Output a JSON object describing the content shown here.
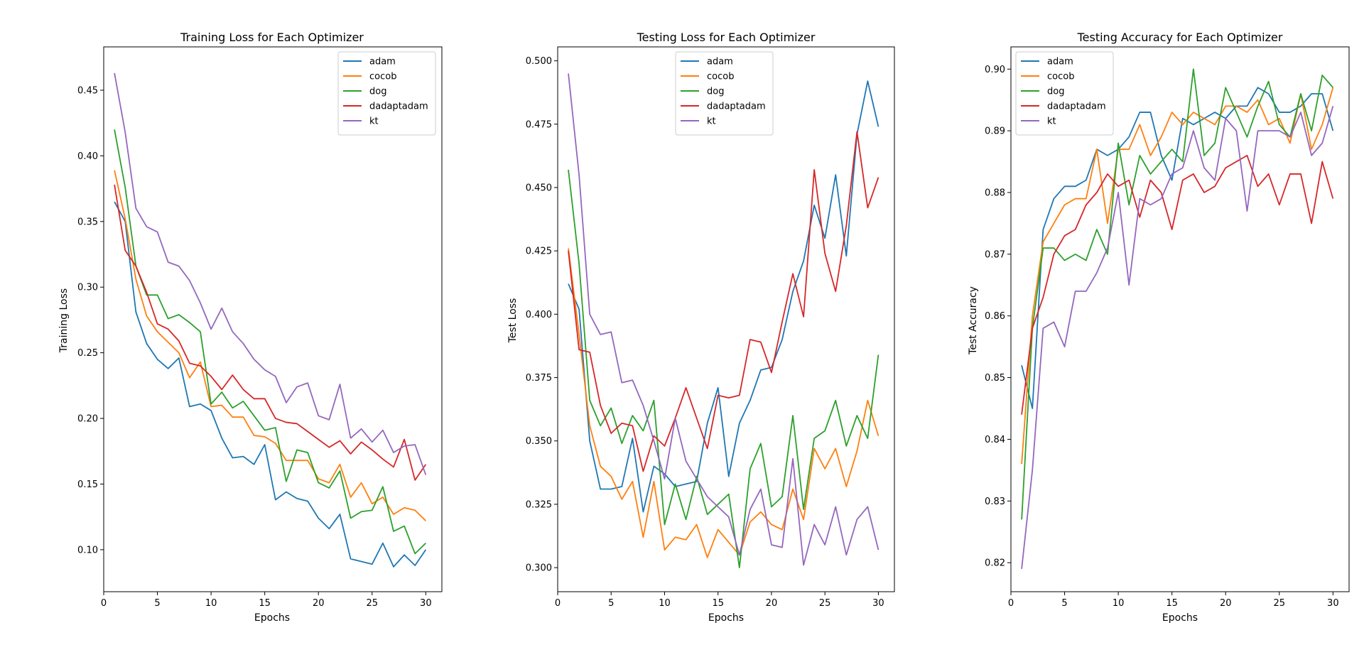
{
  "colors": {
    "adam": "#1f77b4",
    "cocob": "#ff7f0e",
    "dog": "#2ca02c",
    "dadaptadam": "#d62728",
    "kt": "#9467bd"
  },
  "chart_data": [
    {
      "type": "line",
      "title": "Training Loss for Each Optimizer",
      "xlabel": "Epochs",
      "ylabel": "Training Loss",
      "xlim": [
        0,
        31.5
      ],
      "ylim": [
        0.068,
        0.483
      ],
      "xticks": [
        0,
        5,
        10,
        15,
        20,
        25,
        30
      ],
      "yticks": [
        0.1,
        0.15,
        0.2,
        0.25,
        0.3,
        0.35,
        0.4,
        0.45
      ],
      "ytick_labels": [
        "0.10",
        "0.15",
        "0.20",
        "0.25",
        "0.30",
        "0.35",
        "0.40",
        "0.45"
      ],
      "legend_placement": "upper right",
      "grid": false,
      "x": [
        1,
        2,
        3,
        4,
        5,
        6,
        7,
        8,
        9,
        10,
        11,
        12,
        13,
        14,
        15,
        16,
        17,
        18,
        19,
        20,
        21,
        22,
        23,
        24,
        25,
        26,
        27,
        28,
        29,
        30
      ],
      "series": [
        {
          "name": "adam",
          "values": [
            0.365,
            0.35,
            0.281,
            0.257,
            0.245,
            0.238,
            0.246,
            0.209,
            0.211,
            0.206,
            0.185,
            0.17,
            0.171,
            0.165,
            0.18,
            0.138,
            0.144,
            0.139,
            0.137,
            0.124,
            0.116,
            0.127,
            0.093,
            0.091,
            0.089,
            0.105,
            0.087,
            0.096,
            0.088,
            0.1
          ]
        },
        {
          "name": "cocob",
          "values": [
            0.389,
            0.352,
            0.306,
            0.278,
            0.266,
            0.258,
            0.25,
            0.231,
            0.243,
            0.209,
            0.21,
            0.201,
            0.201,
            0.187,
            0.186,
            0.181,
            0.168,
            0.168,
            0.168,
            0.154,
            0.151,
            0.165,
            0.14,
            0.151,
            0.135,
            0.14,
            0.127,
            0.132,
            0.13,
            0.122
          ]
        },
        {
          "name": "dog",
          "values": [
            0.42,
            0.376,
            0.316,
            0.294,
            0.294,
            0.276,
            0.279,
            0.273,
            0.266,
            0.211,
            0.22,
            0.208,
            0.213,
            0.202,
            0.191,
            0.193,
            0.152,
            0.176,
            0.174,
            0.151,
            0.147,
            0.16,
            0.124,
            0.129,
            0.13,
            0.148,
            0.114,
            0.118,
            0.097,
            0.105
          ]
        },
        {
          "name": "dadaptadam",
          "values": [
            0.378,
            0.328,
            0.316,
            0.296,
            0.272,
            0.268,
            0.259,
            0.242,
            0.24,
            0.232,
            0.222,
            0.233,
            0.222,
            0.215,
            0.215,
            0.2,
            0.197,
            0.196,
            0.19,
            0.184,
            0.178,
            0.183,
            0.173,
            0.182,
            0.176,
            0.169,
            0.163,
            0.184,
            0.153,
            0.165
          ]
        },
        {
          "name": "kt",
          "values": [
            0.463,
            0.418,
            0.36,
            0.346,
            0.342,
            0.319,
            0.316,
            0.305,
            0.288,
            0.268,
            0.284,
            0.266,
            0.257,
            0.245,
            0.237,
            0.232,
            0.212,
            0.224,
            0.227,
            0.202,
            0.199,
            0.226,
            0.185,
            0.192,
            0.182,
            0.191,
            0.174,
            0.179,
            0.18,
            0.157
          ]
        }
      ]
    },
    {
      "type": "line",
      "title": "Testing Loss for Each Optimizer",
      "xlabel": "Epochs",
      "ylabel": "Test Loss",
      "xlim": [
        0,
        31.5
      ],
      "ylim": [
        0.2905,
        0.5055
      ],
      "xticks": [
        0,
        5,
        10,
        15,
        20,
        25,
        30
      ],
      "yticks": [
        0.3,
        0.325,
        0.35,
        0.375,
        0.4,
        0.425,
        0.45,
        0.475,
        0.5
      ],
      "ytick_labels": [
        "0.300",
        "0.325",
        "0.350",
        "0.375",
        "0.400",
        "0.425",
        "0.450",
        "0.475",
        "0.500"
      ],
      "legend_placement": "upper center",
      "grid": false,
      "x": [
        1,
        2,
        3,
        4,
        5,
        6,
        7,
        8,
        9,
        10,
        11,
        12,
        13,
        14,
        15,
        16,
        17,
        18,
        19,
        20,
        21,
        22,
        23,
        24,
        25,
        26,
        27,
        28,
        29,
        30
      ],
      "series": [
        {
          "name": "adam",
          "values": [
            0.412,
            0.402,
            0.35,
            0.331,
            0.331,
            0.332,
            0.351,
            0.322,
            0.34,
            0.337,
            0.332,
            0.333,
            0.334,
            0.357,
            0.371,
            0.336,
            0.357,
            0.366,
            0.378,
            0.379,
            0.39,
            0.409,
            0.421,
            0.443,
            0.43,
            0.455,
            0.423,
            0.471,
            0.492,
            0.474
          ]
        },
        {
          "name": "cocob",
          "values": [
            0.426,
            0.392,
            0.356,
            0.34,
            0.336,
            0.327,
            0.334,
            0.312,
            0.334,
            0.307,
            0.312,
            0.311,
            0.317,
            0.304,
            0.315,
            0.31,
            0.305,
            0.318,
            0.322,
            0.317,
            0.315,
            0.331,
            0.319,
            0.347,
            0.339,
            0.347,
            0.332,
            0.346,
            0.366,
            0.352
          ]
        },
        {
          "name": "dog",
          "values": [
            0.457,
            0.42,
            0.366,
            0.356,
            0.363,
            0.349,
            0.36,
            0.354,
            0.366,
            0.317,
            0.333,
            0.319,
            0.336,
            0.321,
            0.325,
            0.329,
            0.3,
            0.339,
            0.349,
            0.324,
            0.328,
            0.36,
            0.323,
            0.351,
            0.354,
            0.366,
            0.348,
            0.36,
            0.351,
            0.384
          ]
        },
        {
          "name": "dadaptadam",
          "values": [
            0.425,
            0.386,
            0.385,
            0.364,
            0.353,
            0.357,
            0.356,
            0.338,
            0.352,
            0.348,
            0.359,
            0.371,
            0.359,
            0.347,
            0.368,
            0.367,
            0.368,
            0.39,
            0.389,
            0.377,
            0.397,
            0.416,
            0.399,
            0.457,
            0.424,
            0.409,
            0.435,
            0.472,
            0.442,
            0.454
          ]
        },
        {
          "name": "kt",
          "values": [
            0.495,
            0.455,
            0.4,
            0.392,
            0.393,
            0.373,
            0.374,
            0.364,
            0.35,
            0.335,
            0.359,
            0.342,
            0.335,
            0.328,
            0.324,
            0.32,
            0.305,
            0.323,
            0.331,
            0.309,
            0.308,
            0.343,
            0.301,
            0.317,
            0.309,
            0.324,
            0.305,
            0.319,
            0.324,
            0.307
          ]
        }
      ]
    },
    {
      "type": "line",
      "title": "Testing Accuracy for Each Optimizer",
      "xlabel": "Epochs",
      "ylabel": "Test Accuracy",
      "xlim": [
        0,
        31.5
      ],
      "ylim": [
        0.8153,
        0.9036
      ],
      "xticks": [
        0,
        5,
        10,
        15,
        20,
        25,
        30
      ],
      "yticks": [
        0.82,
        0.83,
        0.84,
        0.85,
        0.86,
        0.87,
        0.88,
        0.89,
        0.9
      ],
      "ytick_labels": [
        "0.82",
        "0.83",
        "0.84",
        "0.85",
        "0.86",
        "0.87",
        "0.88",
        "0.89",
        "0.90"
      ],
      "legend_placement": "upper left",
      "grid": false,
      "x": [
        1,
        2,
        3,
        4,
        5,
        6,
        7,
        8,
        9,
        10,
        11,
        12,
        13,
        14,
        15,
        16,
        17,
        18,
        19,
        20,
        21,
        22,
        23,
        24,
        25,
        26,
        27,
        28,
        29,
        30
      ],
      "series": [
        {
          "name": "adam",
          "values": [
            0.852,
            0.845,
            0.874,
            0.879,
            0.881,
            0.881,
            0.882,
            0.887,
            0.886,
            0.887,
            0.889,
            0.893,
            0.893,
            0.886,
            0.882,
            0.892,
            0.891,
            0.892,
            0.893,
            0.892,
            0.894,
            0.894,
            0.897,
            0.896,
            0.893,
            0.893,
            0.894,
            0.896,
            0.896,
            0.89
          ]
        },
        {
          "name": "cocob",
          "values": [
            0.836,
            0.86,
            0.872,
            0.875,
            0.878,
            0.879,
            0.879,
            0.887,
            0.875,
            0.887,
            0.887,
            0.891,
            0.886,
            0.889,
            0.893,
            0.891,
            0.893,
            0.892,
            0.891,
            0.894,
            0.894,
            0.893,
            0.895,
            0.891,
            0.892,
            0.888,
            0.896,
            0.887,
            0.891,
            0.897
          ]
        },
        {
          "name": "dog",
          "values": [
            0.827,
            0.858,
            0.871,
            0.871,
            0.869,
            0.87,
            0.869,
            0.874,
            0.87,
            0.888,
            0.878,
            0.886,
            0.883,
            0.885,
            0.887,
            0.885,
            0.9,
            0.886,
            0.888,
            0.897,
            0.893,
            0.889,
            0.894,
            0.898,
            0.891,
            0.889,
            0.896,
            0.89,
            0.899,
            0.897
          ]
        },
        {
          "name": "dadaptadam",
          "values": [
            0.844,
            0.858,
            0.863,
            0.87,
            0.873,
            0.874,
            0.878,
            0.88,
            0.883,
            0.881,
            0.882,
            0.876,
            0.882,
            0.88,
            0.874,
            0.882,
            0.883,
            0.88,
            0.881,
            0.884,
            0.885,
            0.886,
            0.881,
            0.883,
            0.878,
            0.883,
            0.883,
            0.875,
            0.885,
            0.879
          ]
        },
        {
          "name": "kt",
          "values": [
            0.819,
            0.835,
            0.858,
            0.859,
            0.855,
            0.864,
            0.864,
            0.867,
            0.871,
            0.88,
            0.865,
            0.879,
            0.878,
            0.879,
            0.883,
            0.884,
            0.89,
            0.884,
            0.882,
            0.892,
            0.89,
            0.877,
            0.89,
            0.89,
            0.89,
            0.889,
            0.893,
            0.886,
            0.888,
            0.894
          ]
        }
      ]
    }
  ]
}
